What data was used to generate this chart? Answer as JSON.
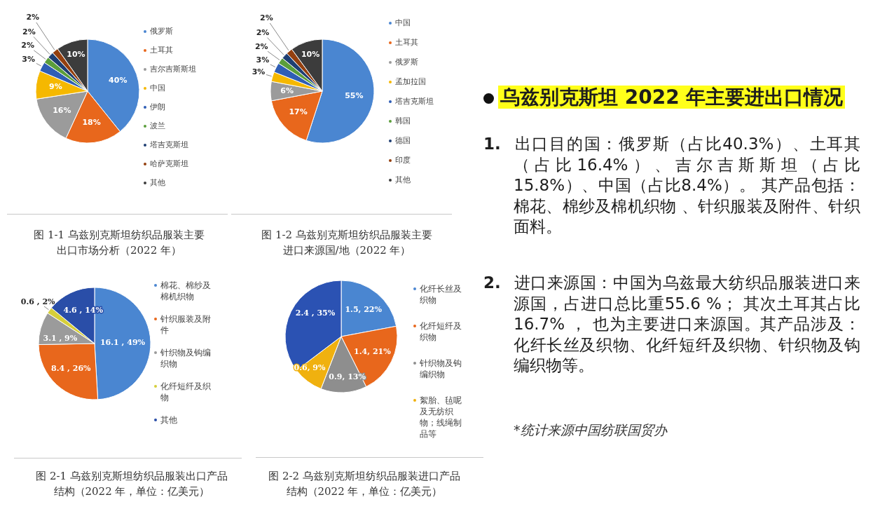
{
  "chart_data": [
    {
      "type": "pie",
      "title": "图 1-1 乌兹别克斯坦纺织品服装主要出口市场分析（2022 年）",
      "categories": [
        "俄罗斯",
        "土耳其",
        "吉尔吉斯斯坦",
        "中国",
        "伊朗",
        "波兰",
        "塔吉克斯坦",
        "哈萨克斯坦",
        "其他"
      ],
      "values": [
        40,
        18,
        16,
        9,
        3,
        2,
        2,
        2,
        10
      ],
      "value_labels": [
        "40%",
        "18%",
        "16%",
        "9%",
        "3%",
        "2%",
        "2%",
        "2%",
        "10%"
      ],
      "colors": [
        "#4a86d1",
        "#e8671c",
        "#9b9b9b",
        "#f5b800",
        "#2f5eb5",
        "#5b9e3b",
        "#1f3f73",
        "#94400f",
        "#3c3c3c"
      ],
      "legend": "right"
    },
    {
      "type": "pie",
      "title": "图 1-2 乌兹别克斯坦纺织品服装主要进口来源国/地（2022 年）",
      "categories": [
        "中国",
        "土耳其",
        "俄罗斯",
        "孟加拉国",
        "塔吉克斯坦",
        "韩国",
        "德国",
        "印度",
        "其他"
      ],
      "values": [
        55,
        17,
        6,
        3,
        3,
        2,
        2,
        2,
        10
      ],
      "value_labels": [
        "55%",
        "17%",
        "6%",
        "3%",
        "3%",
        "2%",
        "2%",
        "2%",
        "10%"
      ],
      "colors": [
        "#4a86d1",
        "#e8671c",
        "#9b9b9b",
        "#f5b800",
        "#2f5eb5",
        "#5b9e3b",
        "#1f3f73",
        "#94400f",
        "#3c3c3c"
      ],
      "legend": "right"
    },
    {
      "type": "pie",
      "title": "图 2-1 乌兹别克斯坦纺织品服装出口产品结构（2022 年，单位：亿美元）",
      "categories": [
        "棉花、棉纱及棉机织物",
        "针织服装及附件",
        "针织物及钩编织物",
        "化纤短纤及织物",
        "其他"
      ],
      "values": [
        16.1,
        8.4,
        3.1,
        0.6,
        4.6
      ],
      "value_labels": [
        "16.1 , 49%",
        "8.4 , 26%",
        "3.1 , 9%",
        "0.6 , 2%",
        "4.6 , 14%"
      ],
      "colors": [
        "#4a86d1",
        "#e8671c",
        "#9b9b9b",
        "#d6cf3a",
        "#2a4ea8"
      ],
      "legend": "right"
    },
    {
      "type": "pie",
      "title": "图 2-2 乌兹别克斯坦纺织品服装进口产品结构（2022 年，单位：亿美元）",
      "categories": [
        "化纤长丝及织物",
        "化纤短纤及织物",
        "针织物及钩编织物",
        "絮胎、毡呢及无纺织物；线绳制品等",
        null
      ],
      "values": [
        1.5,
        1.4,
        0.9,
        0.6,
        2.4
      ],
      "value_labels": [
        "1.5, 22%",
        "1.4, 21%",
        "0.9, 13%",
        "0.6, 9%",
        "2.4 , 35%"
      ],
      "colors": [
        "#4a86d1",
        "#e8671c",
        "#8e8e8e",
        "#f0b10f",
        "#2b52b3"
      ],
      "legend": "right"
    },
    {
      "type": "other",
      "title": "乌兹别克斯坦 2022 年主要进出口情况",
      "annotations": [
        "1. 出口目的国：俄罗斯（占比40.3%）、土耳其（占比16.4%）、吉尔吉斯斯坦（占比15.8%）、中国（占比8.4%）。 其产品包括：棉花、棉纱及棉机织物 、针织服装及附件、针织面料。",
        "2. 进口来源国：中国为乌兹最大纺织品服装进口来源国，占进口总比重55.6 %； 其次土耳其占比16.7% ， 也为主要进口来源国。其产品涉及：化纤长丝及织物、化纤短纤及织物、针织物及钩编织物等。",
        "*统计来源中国纺联国贸办"
      ]
    }
  ]
}
